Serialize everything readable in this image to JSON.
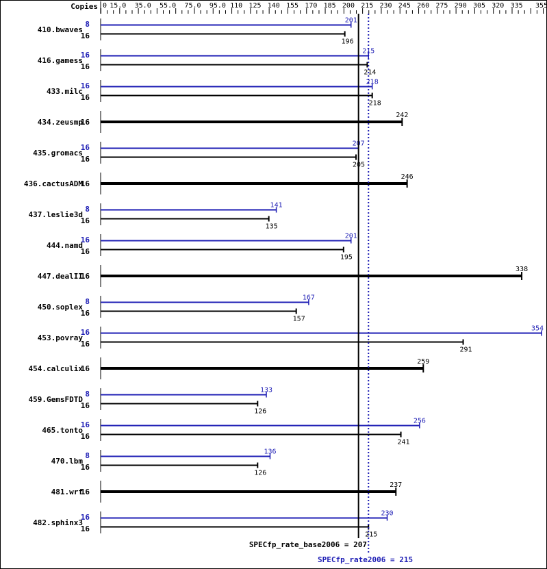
{
  "chart_data": {
    "type": "bar",
    "orientation": "horizontal",
    "header_label": "Copies",
    "xlim": [
      0,
      355
    ],
    "tick_labels": [
      "0",
      "15.0",
      "35.0",
      "55.0",
      "75.0",
      "95.0",
      "110",
      "125",
      "140",
      "155",
      "170",
      "185",
      "200",
      "215",
      "230",
      "245",
      "260",
      "275",
      "290",
      "305",
      "320",
      "335",
      "355"
    ],
    "tick_values": [
      0,
      15,
      35,
      55,
      75,
      95,
      110,
      125,
      140,
      155,
      170,
      185,
      200,
      215,
      230,
      245,
      260,
      275,
      290,
      305,
      320,
      335,
      355
    ],
    "colors": {
      "peak": "#1c1cb4",
      "base": "#000000"
    },
    "benchmarks": [
      {
        "name": "410.bwaves",
        "peak_copies": "8",
        "peak": 201,
        "base_copies": "16",
        "base": 196
      },
      {
        "name": "416.gamess",
        "peak_copies": "16",
        "peak": 215,
        "base_copies": "16",
        "base": 214
      },
      {
        "name": "433.milc",
        "peak_copies": "16",
        "peak": 218,
        "base_copies": "16",
        "base": 218
      },
      {
        "name": "434.zeusmp",
        "base_copies": "16",
        "base": 242
      },
      {
        "name": "435.gromacs",
        "peak_copies": "16",
        "peak": 207,
        "base_copies": "16",
        "base": 205
      },
      {
        "name": "436.cactusADM",
        "base_copies": "16",
        "base": 246
      },
      {
        "name": "437.leslie3d",
        "peak_copies": "8",
        "peak": 141,
        "base_copies": "16",
        "base": 135
      },
      {
        "name": "444.namd",
        "peak_copies": "16",
        "peak": 201,
        "base_copies": "16",
        "base": 195
      },
      {
        "name": "447.dealII",
        "base_copies": "16",
        "base": 338
      },
      {
        "name": "450.soplex",
        "peak_copies": "8",
        "peak": 167,
        "base_copies": "16",
        "base": 157
      },
      {
        "name": "453.povray",
        "peak_copies": "16",
        "peak": 354,
        "base_copies": "16",
        "base": 291
      },
      {
        "name": "454.calculix",
        "base_copies": "16",
        "base": 259
      },
      {
        "name": "459.GemsFDTD",
        "peak_copies": "8",
        "peak": 133,
        "base_copies": "16",
        "base": 126
      },
      {
        "name": "465.tonto",
        "peak_copies": "16",
        "peak": 256,
        "base_copies": "16",
        "base": 241
      },
      {
        "name": "470.lbm",
        "peak_copies": "8",
        "peak": 136,
        "base_copies": "16",
        "base": 126
      },
      {
        "name": "481.wrf",
        "base_copies": "16",
        "base": 237
      },
      {
        "name": "482.sphinx3",
        "peak_copies": "16",
        "peak": 230,
        "base_copies": "16",
        "base": 215
      }
    ],
    "base_mean": {
      "label": "SPECfp_rate_base2006 = 207",
      "value": 207
    },
    "peak_mean": {
      "label": "SPECfp_rate2006 = 215",
      "value": 215
    }
  }
}
